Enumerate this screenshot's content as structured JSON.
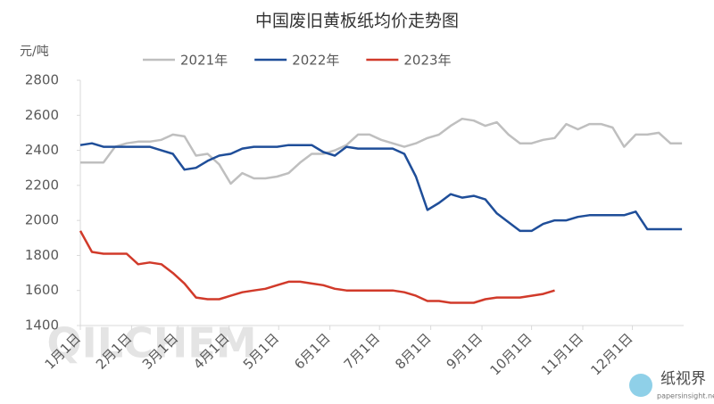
{
  "chart_data": {
    "type": "line",
    "title": "中国废旧黄板纸均价走势图",
    "y_label": "元/吨",
    "x": [
      0,
      7,
      14,
      21,
      28,
      35,
      42,
      49,
      56,
      63,
      70,
      77,
      84,
      91,
      98,
      105,
      112,
      119,
      126,
      133,
      140,
      147,
      154,
      161,
      168,
      175,
      182,
      189,
      196,
      203,
      210,
      217,
      224,
      231,
      238,
      245,
      252,
      259,
      266,
      273,
      280,
      287,
      294,
      301,
      308,
      315,
      322,
      329,
      336,
      343,
      350,
      357,
      364
    ],
    "xlim": [
      0,
      365
    ],
    "xticks": [
      {
        "value": 0,
        "label": "1月1日"
      },
      {
        "value": 31,
        "label": "2月1日"
      },
      {
        "value": 59,
        "label": "3月1日"
      },
      {
        "value": 90,
        "label": "4月1日"
      },
      {
        "value": 120,
        "label": "5月1日"
      },
      {
        "value": 151,
        "label": "6月1日"
      },
      {
        "value": 181,
        "label": "7月1日"
      },
      {
        "value": 212,
        "label": "8月1日"
      },
      {
        "value": 243,
        "label": "9月1日"
      },
      {
        "value": 273,
        "label": "10月1日"
      },
      {
        "value": 304,
        "label": "11月1日"
      },
      {
        "value": 334,
        "label": "12月1日"
      }
    ],
    "ylim": [
      1400,
      2800
    ],
    "yticks": [
      1400,
      1600,
      1800,
      2000,
      2200,
      2400,
      2600,
      2800
    ],
    "grid": false,
    "series": [
      {
        "name": "2021年",
        "color": "#bfbfbf",
        "values": [
          2330,
          2330,
          2330,
          2420,
          2440,
          2450,
          2450,
          2460,
          2490,
          2480,
          2370,
          2380,
          2320,
          2210,
          2270,
          2240,
          2240,
          2250,
          2270,
          2330,
          2380,
          2380,
          2400,
          2430,
          2490,
          2490,
          2460,
          2440,
          2420,
          2440,
          2470,
          2490,
          2540,
          2580,
          2570,
          2540,
          2560,
          2490,
          2440,
          2440,
          2460,
          2470,
          2550,
          2520,
          2550,
          2550,
          2530,
          2420,
          2490,
          2490,
          2500,
          2440,
          2440
        ]
      },
      {
        "name": "2022年",
        "color": "#1f4e99",
        "values": [
          2430,
          2440,
          2420,
          2420,
          2420,
          2420,
          2420,
          2400,
          2380,
          2290,
          2300,
          2340,
          2370,
          2380,
          2410,
          2420,
          2420,
          2420,
          2430,
          2430,
          2430,
          2390,
          2370,
          2420,
          2410,
          2410,
          2410,
          2410,
          2380,
          2250,
          2060,
          2100,
          2150,
          2130,
          2140,
          2120,
          2040,
          1990,
          1940,
          1940,
          1980,
          2000,
          2000,
          2020,
          2030,
          2030,
          2030,
          2030,
          2050,
          1950,
          1950,
          1950,
          1950
        ]
      },
      {
        "name": "2023年",
        "color": "#d13a2a",
        "values": [
          1940,
          1820,
          1810,
          1810,
          1810,
          1750,
          1760,
          1750,
          1700,
          1640,
          1560,
          1550,
          1550,
          1570,
          1590,
          1600,
          1610,
          1630,
          1650,
          1650,
          1640,
          1630,
          1610,
          1600,
          1600,
          1600,
          1600,
          1600,
          1590,
          1570,
          1540,
          1540,
          1530,
          1530,
          1530,
          1550,
          1560,
          1560,
          1560,
          1570,
          1580,
          1600,
          null,
          null,
          null,
          null,
          null,
          null,
          null,
          null,
          null,
          null,
          null
        ]
      }
    ],
    "legend": "top",
    "watermark": "QILCHEM",
    "logo_text": "纸视界",
    "logo_url": "papersinsight.net"
  }
}
